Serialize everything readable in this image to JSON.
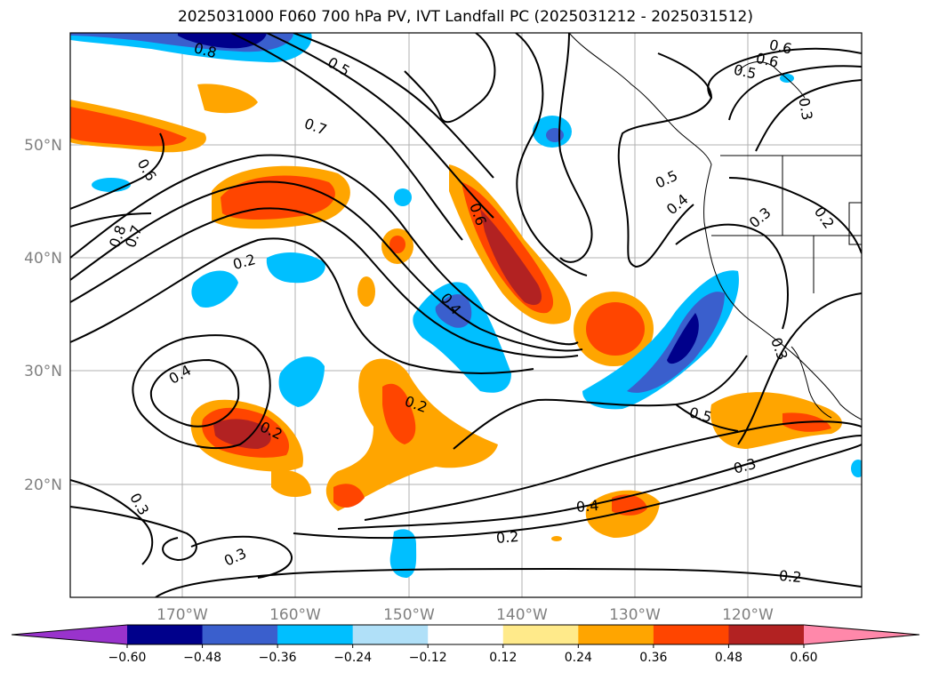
{
  "title": "2025031000 F060 700 hPa PV, IVT Landfall PC (2025031212 - 2025031512)",
  "map": {
    "lon_ticks": [
      "170°W",
      "160°W",
      "150°W",
      "140°W",
      "130°W",
      "120°W"
    ],
    "lat_ticks": [
      "50°N",
      "40°N",
      "30°N",
      "20°N"
    ],
    "contour_labels": [
      "0.8",
      "0.5",
      "0.7",
      "0.6",
      "0.8",
      "0.7",
      "0.6",
      "0.5",
      "0.3",
      "0.5",
      "0.4",
      "0.3",
      "0.2",
      "0.2",
      "0.6",
      "0.4",
      "0.4",
      "0.2",
      "0.2",
      "0.3",
      "0.5",
      "0.3",
      "0.4",
      "0.2",
      "0.3",
      "0.3",
      "0.2"
    ]
  },
  "colorbar": {
    "colors": [
      "#9933cc",
      "#00008b",
      "#3a5fcd",
      "#00bfff",
      "#b0e0f8",
      "#ffffff",
      "#ffea8a",
      "#ffa500",
      "#ff4500",
      "#b22222",
      "#ff88aa"
    ],
    "ticks": [
      "−0.60",
      "−0.48",
      "−0.36",
      "−0.24",
      "−0.12",
      "0.12",
      "0.24",
      "0.36",
      "0.48",
      "0.60"
    ]
  }
}
